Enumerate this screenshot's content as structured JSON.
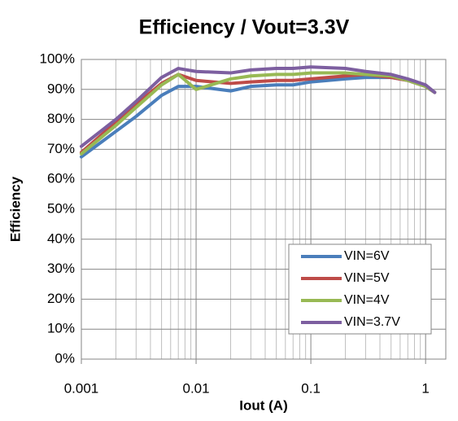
{
  "chart_data": {
    "type": "line",
    "title": "Efficiency / Vout=3.3V",
    "x_label": "Iout (A)",
    "y_label": "Efficiency",
    "x": [
      0.001,
      0.002,
      0.003,
      0.005,
      0.007,
      0.01,
      0.02,
      0.03,
      0.05,
      0.07,
      0.1,
      0.2,
      0.3,
      0.5,
      0.7,
      1,
      1.2
    ],
    "series": [
      {
        "name": "VIN=6V",
        "color": "#4a7ebb",
        "values": [
          67.5,
          76,
          81,
          88,
          91,
          91,
          89.5,
          91,
          91.5,
          91.5,
          92.5,
          93.5,
          94,
          94,
          93,
          91,
          89
        ]
      },
      {
        "name": "VIN=5V",
        "color": "#be4b48",
        "values": [
          69,
          79,
          85,
          92,
          95,
          93,
          92,
          92.5,
          93,
          93,
          93.5,
          94.5,
          95,
          94,
          93,
          91,
          89
        ]
      },
      {
        "name": "VIN=4V",
        "color": "#98b954",
        "values": [
          68.5,
          78,
          84,
          91.5,
          95,
          90,
          93.5,
          94.5,
          95,
          95,
          95.5,
          95.5,
          95,
          94.5,
          93,
          91,
          89
        ]
      },
      {
        "name": "VIN=3.7V",
        "color": "#7d5fa0",
        "values": [
          71,
          80,
          86,
          94,
          97,
          96,
          95.5,
          96.5,
          97,
          97,
          97.5,
          97,
          96,
          95,
          93.5,
          91.5,
          89
        ]
      }
    ],
    "xlim": [
      0.001,
      1.5
    ],
    "xticks": [
      0.001,
      0.01,
      0.1,
      1
    ],
    "xscale": "log",
    "ylim": [
      0,
      100
    ],
    "yticks": [
      {
        "value": 0,
        "label": "0%"
      },
      {
        "value": 10,
        "label": "10%"
      },
      {
        "value": 20,
        "label": "20%"
      },
      {
        "value": 30,
        "label": "30%"
      },
      {
        "value": 40,
        "label": "40%"
      },
      {
        "value": 50,
        "label": "50%"
      },
      {
        "value": 60,
        "label": "60%"
      },
      {
        "value": 70,
        "label": "70%"
      },
      {
        "value": 80,
        "label": "80%"
      },
      {
        "value": 90,
        "label": "90%"
      },
      {
        "value": 100,
        "label": "100%"
      }
    ],
    "grid": true,
    "minor_grid": true,
    "legend": "lower right"
  }
}
